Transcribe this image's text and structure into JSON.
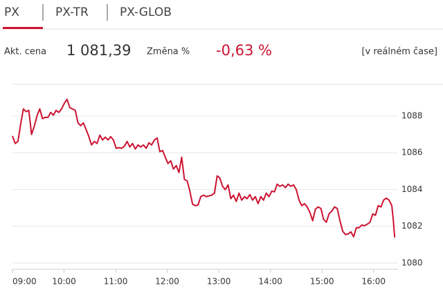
{
  "header": {
    "tabs": [
      "PX",
      "PX-TR",
      "PX-GLOB"
    ],
    "active_tab": 0
  },
  "quote": {
    "price_label": "Akt. cena",
    "price": "1 081,39",
    "change_label": "Změna %",
    "change": "-0,63 %",
    "realtime": "[v reálném čase]"
  },
  "chart_data": {
    "type": "line",
    "color": "#cc1230",
    "grid": true,
    "xlim": [
      9,
      16.5
    ],
    "ylim": [
      1079.66,
      1089.72
    ],
    "xticks": [
      {
        "value": 9,
        "label": "09:00"
      },
      {
        "value": 10,
        "label": "10:00"
      },
      {
        "value": 11,
        "label": "11:00"
      },
      {
        "value": 12,
        "label": "12:00"
      },
      {
        "value": 13,
        "label": "13:00"
      },
      {
        "value": 14,
        "label": "14:00"
      },
      {
        "value": 15,
        "label": "15:00"
      },
      {
        "value": 16,
        "label": "16:00"
      }
    ],
    "yticks": [
      1080,
      1082,
      1084,
      1086,
      1088
    ],
    "x": [
      9.0,
      9.053,
      9.106,
      9.159,
      9.212,
      9.265,
      9.317,
      9.37,
      9.423,
      9.476,
      9.529,
      9.582,
      9.635,
      9.688,
      9.741,
      9.794,
      9.846,
      9.899,
      9.952,
      10.005,
      10.058,
      10.111,
      10.164,
      10.217,
      10.27,
      10.323,
      10.375,
      10.428,
      10.481,
      10.534,
      10.587,
      10.64,
      10.693,
      10.746,
      10.799,
      10.852,
      10.904,
      10.957,
      11.01,
      11.063,
      11.116,
      11.169,
      11.222,
      11.275,
      11.328,
      11.381,
      11.433,
      11.486,
      11.539,
      11.592,
      11.645,
      11.698,
      11.751,
      11.804,
      11.857,
      11.91,
      11.962,
      12.015,
      12.068,
      12.121,
      12.174,
      12.227,
      12.28,
      12.333,
      12.386,
      12.439,
      12.491,
      12.544,
      12.597,
      12.65,
      12.703,
      12.756,
      12.809,
      12.862,
      12.915,
      12.968,
      13.02,
      13.073,
      13.126,
      13.179,
      13.232,
      13.285,
      13.338,
      13.391,
      13.444,
      13.497,
      13.549,
      13.602,
      13.655,
      13.708,
      13.761,
      13.814,
      13.867,
      13.92,
      13.973,
      14.026,
      14.078,
      14.131,
      14.184,
      14.237,
      14.29,
      14.343,
      14.396,
      14.449,
      14.502,
      14.555,
      14.607,
      14.66,
      14.713,
      14.766,
      14.819,
      14.872,
      14.925,
      14.978,
      15.031,
      15.084,
      15.136,
      15.189,
      15.242,
      15.295,
      15.348,
      15.401,
      15.454,
      15.507,
      15.56,
      15.613,
      15.665,
      15.718,
      15.771,
      15.824,
      15.877,
      15.93,
      15.983,
      16.036,
      16.089,
      16.142,
      16.194,
      16.247,
      16.3,
      16.353,
      16.383,
      16.409
    ],
    "values": [
      1086.91,
      1086.5,
      1086.61,
      1087.55,
      1088.38,
      1088.23,
      1088.3,
      1086.99,
      1087.44,
      1088.0,
      1088.38,
      1087.85,
      1087.92,
      1087.92,
      1088.19,
      1088.04,
      1088.3,
      1088.19,
      1088.38,
      1088.68,
      1088.9,
      1088.45,
      1088.38,
      1088.3,
      1087.62,
      1087.47,
      1087.62,
      1087.25,
      1086.87,
      1086.42,
      1086.61,
      1086.5,
      1086.95,
      1086.69,
      1086.84,
      1086.69,
      1086.87,
      1086.69,
      1086.24,
      1086.27,
      1086.24,
      1086.35,
      1086.61,
      1086.31,
      1086.5,
      1086.2,
      1086.42,
      1086.31,
      1086.42,
      1086.24,
      1086.54,
      1086.42,
      1086.69,
      1086.8,
      1086.05,
      1086.12,
      1085.75,
      1085.41,
      1085.56,
      1085.11,
      1085.3,
      1084.92,
      1085.75,
      1084.55,
      1084.47,
      1083.91,
      1083.2,
      1083.12,
      1083.16,
      1083.61,
      1083.69,
      1083.61,
      1083.65,
      1083.69,
      1083.8,
      1084.74,
      1084.62,
      1084.17,
      1083.99,
      1084.25,
      1083.5,
      1083.69,
      1083.35,
      1083.8,
      1083.42,
      1083.61,
      1083.5,
      1083.72,
      1083.42,
      1083.61,
      1083.23,
      1083.61,
      1083.42,
      1083.8,
      1083.61,
      1083.91,
      1083.87,
      1084.29,
      1084.17,
      1084.25,
      1084.1,
      1084.29,
      1084.17,
      1084.25,
      1083.99,
      1083.42,
      1083.12,
      1083.23,
      1083.05,
      1082.75,
      1082.3,
      1082.93,
      1083.05,
      1082.97,
      1082.37,
      1082.22,
      1082.67,
      1082.82,
      1083.05,
      1082.97,
      1082.3,
      1081.73,
      1081.55,
      1081.58,
      1081.7,
      1081.43,
      1081.92,
      1081.92,
      1082.07,
      1082.03,
      1082.11,
      1082.22,
      1082.67,
      1082.6,
      1083.12,
      1083.05,
      1083.42,
      1083.53,
      1083.42,
      1083.12,
      1082.3,
      1081.39
    ]
  }
}
